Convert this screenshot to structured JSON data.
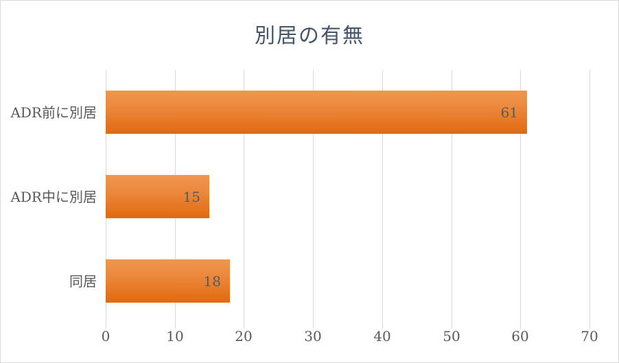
{
  "chart_data": {
    "type": "bar",
    "orientation": "horizontal",
    "title": "別居の有無",
    "categories": [
      "ADR前に別居",
      "ADR中に別居",
      "同居"
    ],
    "values": [
      61,
      15,
      18
    ],
    "xlabel": "",
    "ylabel": "",
    "xlim": [
      0,
      70
    ],
    "x_ticks": [
      "0",
      "10",
      "20",
      "30",
      "40",
      "50",
      "60",
      "70"
    ],
    "grid": true,
    "legend_position": "none",
    "data_label_position": "inside-end",
    "colors": {
      "bar_gradient_top": "#F0964F",
      "bar_gradient_bottom": "#E1690F",
      "gridline": "#D9D9D9",
      "axis_text": "#595959",
      "data_label_text": "#595959",
      "title_text": "#44546A",
      "chart_border": "#D9D9D9",
      "background": "#FFFFFF"
    }
  }
}
